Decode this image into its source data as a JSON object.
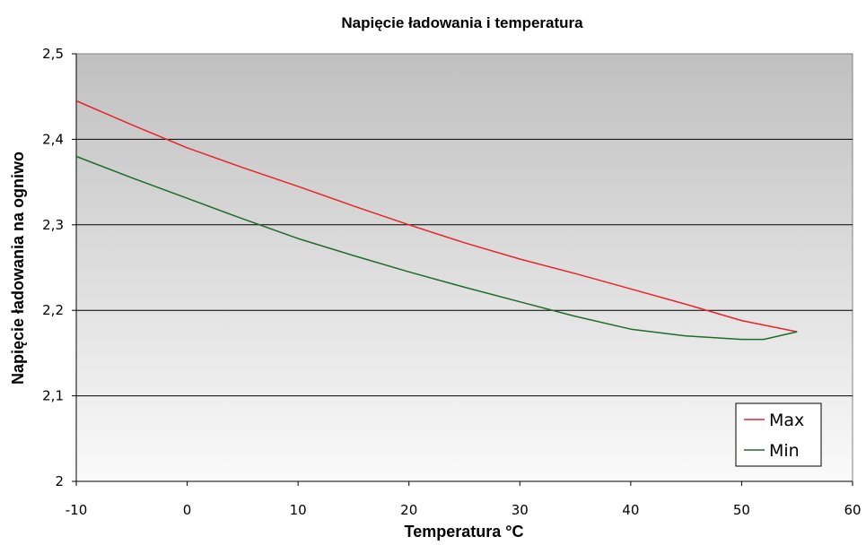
{
  "chart_data": {
    "type": "line",
    "title": "Napięcie ładowania i temperatura",
    "xlabel": "Temperatura °C",
    "ylabel": "Napięcie ładowania na ogniwo",
    "xlim": [
      -10,
      60
    ],
    "ylim": [
      2,
      2.5
    ],
    "x_ticks": [
      "-10",
      "0",
      "10",
      "20",
      "30",
      "40",
      "50",
      "60"
    ],
    "y_ticks": [
      "2",
      "2,1",
      "2,2",
      "2,3",
      "2,4",
      "2,5"
    ],
    "grid": true,
    "legend_position": "bottom-right",
    "series": [
      {
        "name": "Max",
        "color": "#e8242a",
        "points": [
          [
            -10,
            2.445
          ],
          [
            -5,
            2.417
          ],
          [
            0,
            2.39
          ],
          [
            5,
            2.367
          ],
          [
            10,
            2.345
          ],
          [
            15,
            2.322
          ],
          [
            20,
            2.3
          ],
          [
            25,
            2.279
          ],
          [
            30,
            2.26
          ],
          [
            35,
            2.243
          ],
          [
            40,
            2.225
          ],
          [
            45,
            2.207
          ],
          [
            50,
            2.188
          ],
          [
            55,
            2.175
          ]
        ]
      },
      {
        "name": "Min",
        "color": "#1e6b2a",
        "points": [
          [
            -10,
            2.38
          ],
          [
            -5,
            2.355
          ],
          [
            0,
            2.331
          ],
          [
            5,
            2.307
          ],
          [
            10,
            2.284
          ],
          [
            15,
            2.264
          ],
          [
            20,
            2.245
          ],
          [
            25,
            2.227
          ],
          [
            30,
            2.21
          ],
          [
            35,
            2.193
          ],
          [
            40,
            2.178
          ],
          [
            45,
            2.17
          ],
          [
            50,
            2.166
          ],
          [
            52,
            2.166
          ],
          [
            55,
            2.175
          ]
        ]
      }
    ]
  }
}
